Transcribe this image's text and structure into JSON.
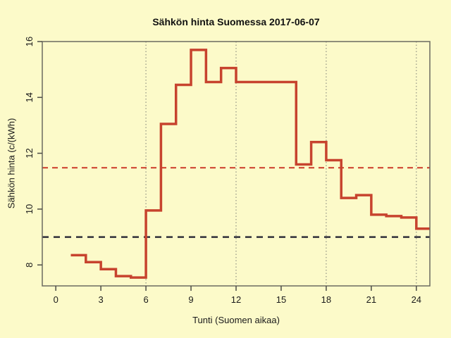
{
  "chart_data": {
    "type": "line",
    "subtype": "step",
    "title": "Sähkön hinta Suomessa 2017-06-07",
    "xlabel": "Tunti (Suomen aikaa)",
    "ylabel": "Sähkön hinta (c/(kWh)",
    "hour_starts": [
      1,
      2,
      3,
      4,
      5,
      6,
      7,
      8,
      9,
      10,
      11,
      12,
      13,
      14,
      15,
      16,
      17,
      18,
      19,
      20,
      21,
      22,
      23,
      24
    ],
    "values": [
      8.35,
      8.1,
      7.85,
      7.6,
      7.55,
      9.95,
      13.05,
      14.45,
      15.7,
      14.55,
      15.05,
      14.55,
      14.55,
      14.55,
      14.55,
      11.6,
      12.4,
      11.75,
      10.4,
      10.5,
      9.8,
      9.75,
      9.7,
      9.3
    ],
    "step_end_hour": 25,
    "xticks": [
      0,
      3,
      6,
      9,
      12,
      15,
      18,
      21,
      24
    ],
    "yticks": [
      8,
      10,
      12,
      14,
      16
    ],
    "xlim": [
      -0.9,
      24.9
    ],
    "ylim": [
      7.25,
      16
    ],
    "gridlines_x": [
      6,
      12,
      18,
      24
    ],
    "grid": "dotted-vertical",
    "legend": "none",
    "mean_line": {
      "value": 11.48,
      "color": "#cb3a28",
      "style": "dashed"
    },
    "reference_line": {
      "value": 9.0,
      "color": "#30303a",
      "style": "dashed"
    },
    "colors": {
      "series": "#c7432e",
      "background": "#fcfac9",
      "frame": "#6b6b60",
      "gridline": "#8f8f82",
      "tick": "#4d4d46",
      "text": "#1a1a1a"
    }
  }
}
